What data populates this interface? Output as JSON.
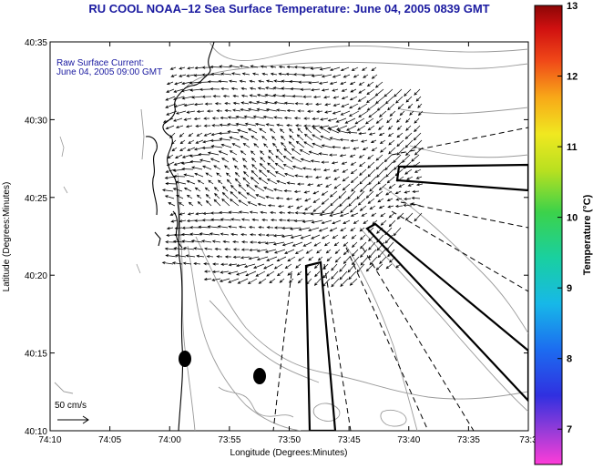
{
  "title": "RU COOL  NOAA–12  Sea Surface Temperature:  June 04, 2005 0839 GMT",
  "annotation": {
    "line1": "Raw Surface Current:",
    "line2": "June 04, 2005 09:00 GMT"
  },
  "scale": {
    "label": "50 cm/s"
  },
  "axes": {
    "xlabel": "Longitude (Degrees:Minutes)",
    "ylabel": "Latitude (Degrees:Minutes)",
    "xticks": [
      "74:10",
      "74:05",
      "74:00",
      "73:55",
      "73:50",
      "73:45",
      "73:40",
      "73:35",
      "73:3"
    ],
    "yticks": [
      "40:35",
      "40:30",
      "40:25",
      "40:20",
      "40:15",
      "40:10"
    ]
  },
  "colorbar": {
    "label": "Temperature (°C)",
    "ticks": [
      "13",
      "12",
      "11",
      "10",
      "9",
      "8",
      "7"
    ],
    "range": [
      6.5,
      13
    ]
  },
  "colors": {
    "title": "#1a1aa0",
    "annotation": "#1a1aa0",
    "bathymetry": "#9a9a9a",
    "coast": "#000000"
  }
}
